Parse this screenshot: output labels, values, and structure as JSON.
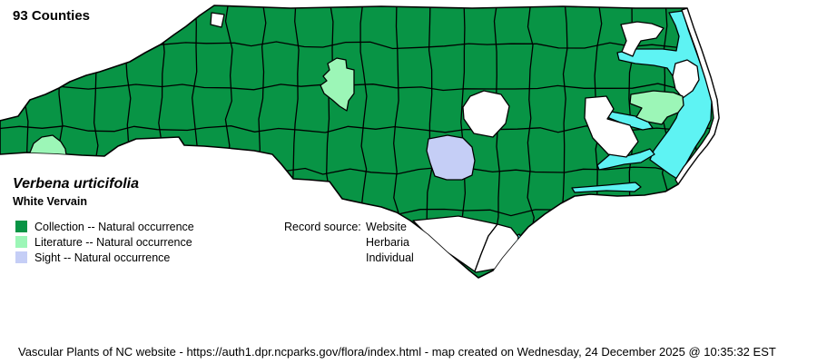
{
  "header": {
    "counties_label": "93 Counties"
  },
  "species": {
    "scientific_name": "Verbena urticifolia",
    "common_name": "White Vervain"
  },
  "legend": {
    "items": [
      {
        "key": "collection",
        "label": "Collection -- Natural occurrence",
        "color": "#089445"
      },
      {
        "key": "literature",
        "label": "Literature -- Natural occurrence",
        "color": "#9CF6B7"
      },
      {
        "key": "sight",
        "label": "Sight -- Natural occurrence",
        "color": "#C5CEF6"
      }
    ]
  },
  "record_source": {
    "label": "Record source:",
    "values": [
      "Website",
      "Herbaria",
      "Individual"
    ]
  },
  "map": {
    "water_color": "#5EF3F3",
    "no_record_color": "#FFFFFF",
    "outline_color": "#000000"
  },
  "footer": {
    "text": "Vascular Plants of NC website - https://auth1.dpr.ncparks.gov/flora/index.html - map created on Wednesday, 24 December 2025 @ 10:35:32 EST"
  }
}
